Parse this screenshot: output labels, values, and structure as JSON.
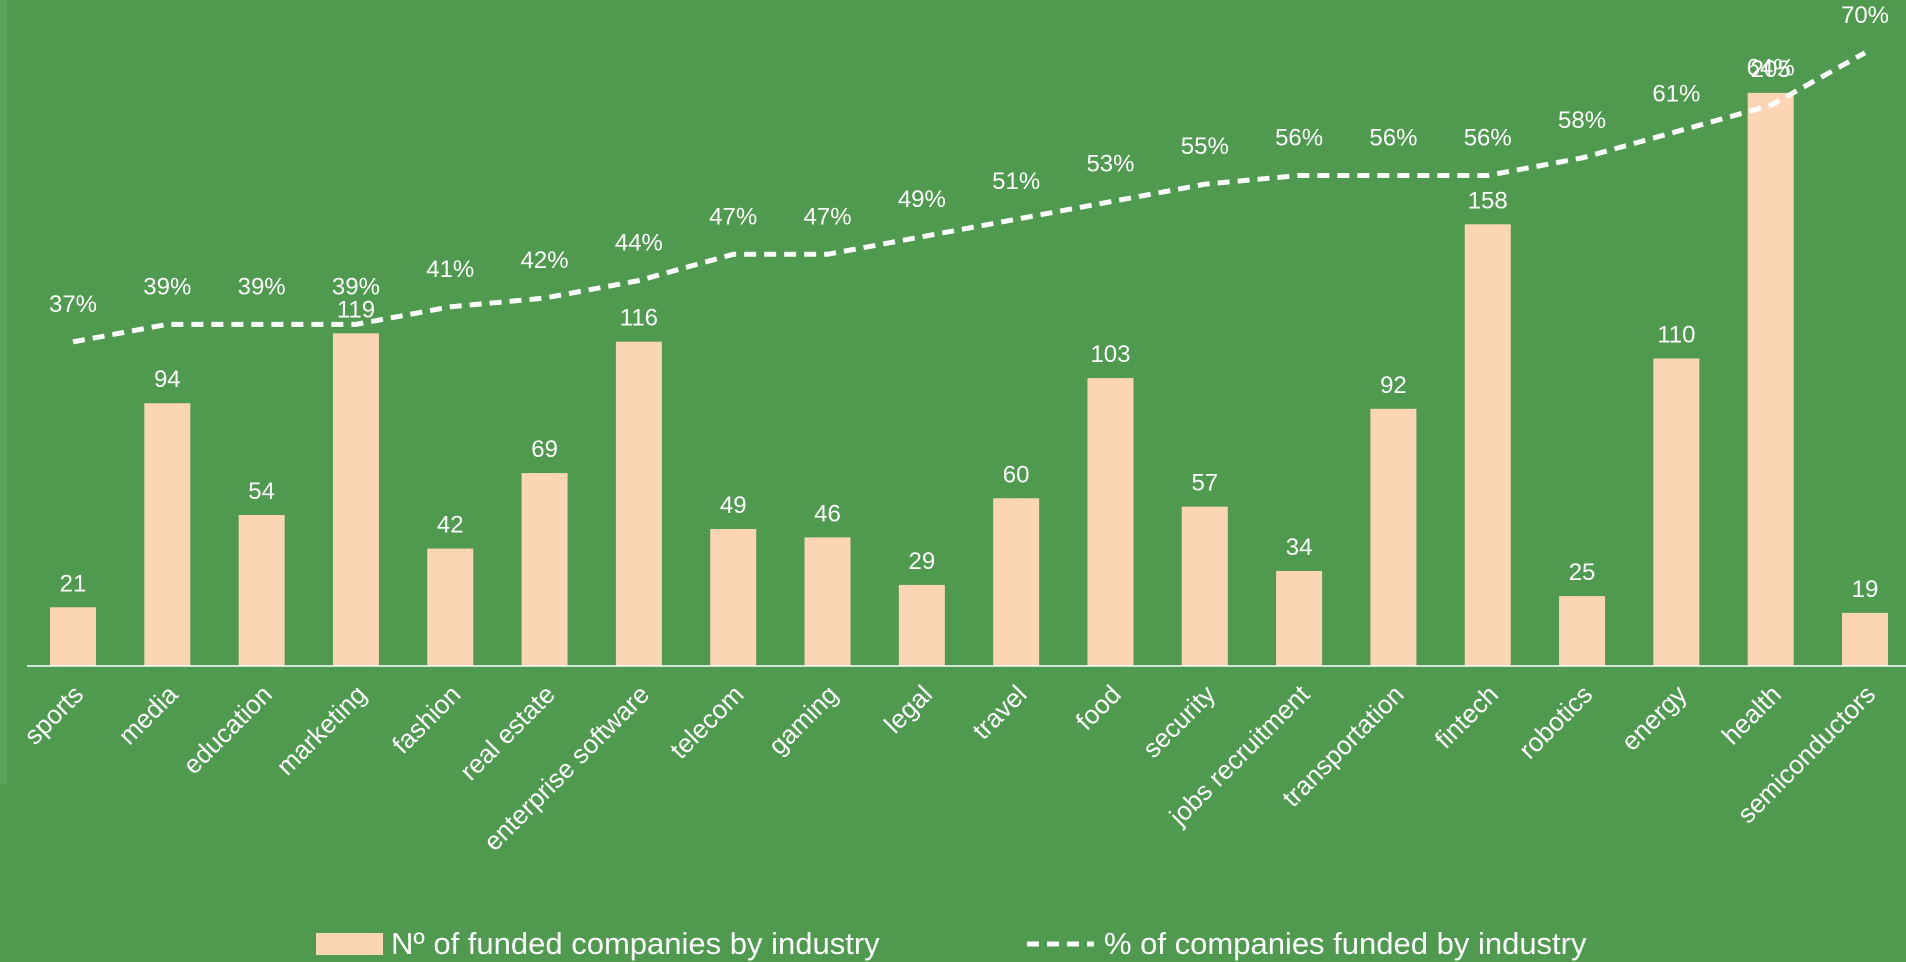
{
  "chart_data": {
    "type": "bar-line",
    "categories": [
      "sports",
      "media",
      "education",
      "marketing",
      "fashion",
      "real estate",
      "enterprise software",
      "telecom",
      "gaming",
      "legal",
      "travel",
      "food",
      "security",
      "jobs recruitment",
      "transportation",
      "fintech",
      "robotics",
      "energy",
      "health",
      "semiconductors"
    ],
    "series": [
      {
        "name": "Nº of funded companies by industry",
        "type": "bar",
        "color": "#fcd5b4",
        "values": [
          21,
          94,
          54,
          119,
          42,
          69,
          116,
          49,
          46,
          29,
          60,
          103,
          57,
          34,
          92,
          158,
          25,
          110,
          205,
          19
        ]
      },
      {
        "name": "% of companies funded by industry",
        "type": "line",
        "axis": "y2",
        "color": "#ffffff",
        "dashed": true,
        "values": [
          37,
          39,
          39,
          39,
          41,
          42,
          44,
          47,
          47,
          49,
          51,
          53,
          55,
          56,
          56,
          56,
          58,
          61,
          64,
          70
        ],
        "value_labels": [
          "37%",
          "39%",
          "39%",
          "39%",
          "41%",
          "42%",
          "44%",
          "47%",
          "47%",
          "49%",
          "51%",
          "53%",
          "55%",
          "56%",
          "56%",
          "56%",
          "58%",
          "61%",
          "64%",
          "70%"
        ]
      }
    ],
    "ylim": [
      0,
      235
    ],
    "y2lim": [
      0,
      75
    ],
    "legend": "bottom"
  }
}
